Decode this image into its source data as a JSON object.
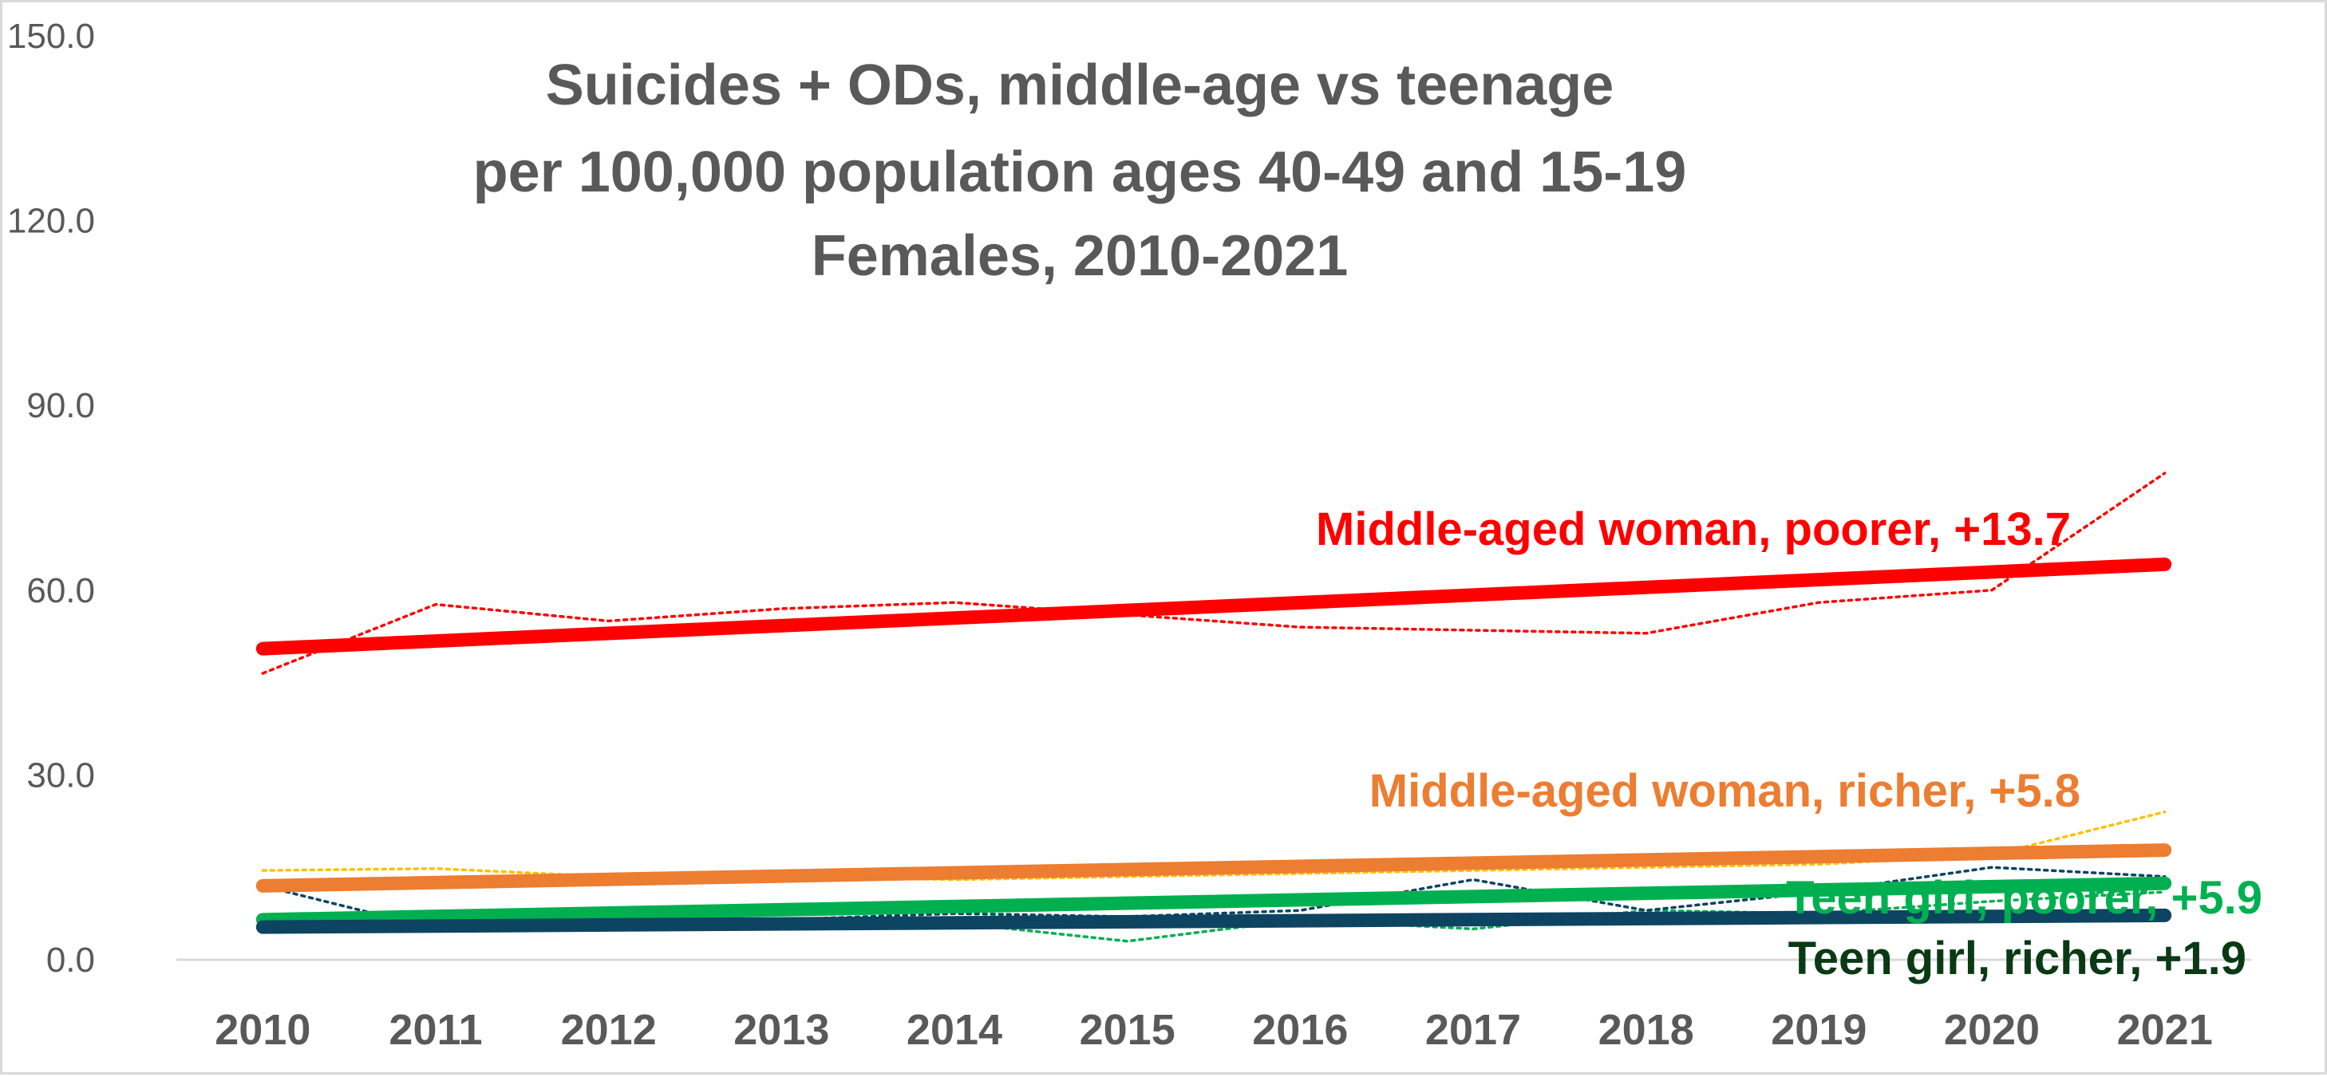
{
  "chart_data": {
    "type": "line",
    "title": [
      "Suicides + ODs, middle-age vs teenage",
      "per 100,000 population ages 40-49 and 15-19",
      "Females, 2010-2021"
    ],
    "x": [
      "2010",
      "2011",
      "2012",
      "2013",
      "2014",
      "2015",
      "2016",
      "2017",
      "2018",
      "2019",
      "2020",
      "2021"
    ],
    "ylim": [
      0,
      150
    ],
    "y_ticks": [
      "0.0",
      "30.0",
      "60.0",
      "90.0",
      "120.0",
      "150.0"
    ],
    "grid": false,
    "series": [
      {
        "name": "Middle-aged woman, poorer, +13.7",
        "color": "#ff0000",
        "values": [
          46.5,
          57.7,
          55.0,
          57.0,
          58.0,
          56.0,
          54.0,
          53.5,
          53.0,
          58.0,
          60.0,
          79.0
        ],
        "trend": [
          50.5,
          64.2
        ]
      },
      {
        "name": "Middle-aged woman, richer, +5.8",
        "color": "#ed7d31",
        "dotted_color": "#ffc000",
        "values": [
          14.5,
          14.8,
          13.5,
          13.5,
          13.0,
          13.5,
          14.0,
          14.5,
          15.0,
          15.5,
          17.0,
          24.0
        ],
        "trend": [
          12.0,
          17.8
        ]
      },
      {
        "name": "Teen girl, poorer, +5.9",
        "color": "#00b050",
        "values": [
          6.5,
          6.0,
          6.0,
          6.5,
          6.0,
          3.0,
          6.5,
          5.0,
          8.0,
          7.5,
          9.5,
          11.0
        ],
        "trend": [
          6.5,
          12.4
        ]
      },
      {
        "name": "Teen girl, richer, +1.9",
        "color": "#0d4462",
        "label_color": "#0a3a14",
        "values": [
          12.0,
          5.0,
          6.5,
          6.5,
          7.5,
          7.0,
          8.0,
          13.0,
          8.0,
          11.0,
          15.0,
          13.5
        ],
        "trend": [
          5.3,
          7.2
        ]
      }
    ]
  }
}
